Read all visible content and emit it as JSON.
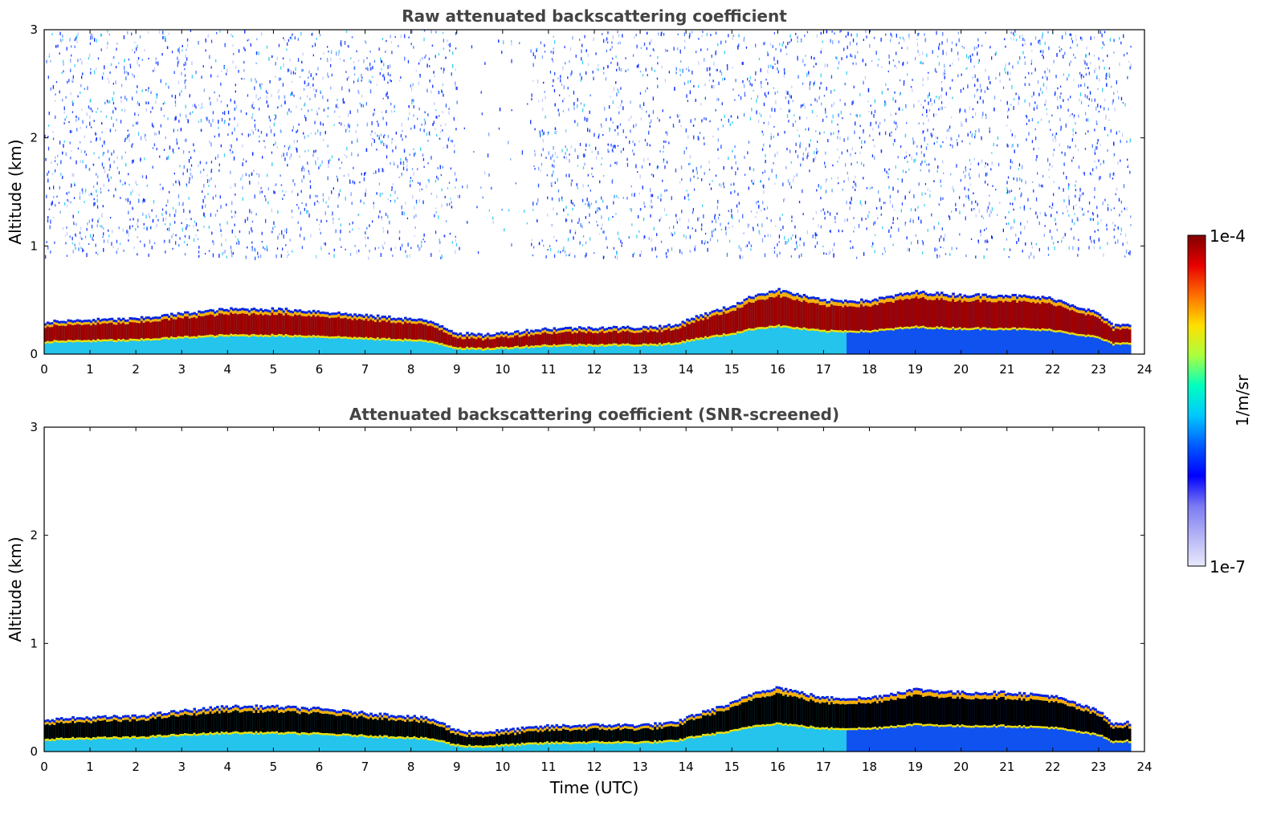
{
  "chart_data": [
    {
      "type": "heatmap",
      "title": "Raw attenuated backscattering coefficient",
      "xlabel": "",
      "ylabel": "Altitude (km)",
      "xlim": [
        0,
        24
      ],
      "ylim": [
        0,
        3
      ],
      "x_ticks": [
        "0",
        "1",
        "2",
        "3",
        "4",
        "5",
        "6",
        "7",
        "8",
        "9",
        "10",
        "11",
        "12",
        "13",
        "14",
        "15",
        "16",
        "17",
        "18",
        "19",
        "20",
        "21",
        "22",
        "23",
        "24"
      ],
      "y_ticks": [
        "0",
        "1",
        "2",
        "3"
      ],
      "data_end_hour": 23.7,
      "noise_above_km": 0.9,
      "layer_top_km": [
        [
          0,
          0.3
        ],
        [
          1,
          0.32
        ],
        [
          2,
          0.33
        ],
        [
          3,
          0.38
        ],
        [
          4,
          0.42
        ],
        [
          5,
          0.42
        ],
        [
          6,
          0.4
        ],
        [
          7,
          0.36
        ],
        [
          8,
          0.33
        ],
        [
          8.5,
          0.3
        ],
        [
          9,
          0.2
        ],
        [
          9.5,
          0.18
        ],
        [
          10,
          0.2
        ],
        [
          11,
          0.24
        ],
        [
          12,
          0.25
        ],
        [
          13,
          0.25
        ],
        [
          13.8,
          0.27
        ],
        [
          14,
          0.32
        ],
        [
          15,
          0.45
        ],
        [
          15.5,
          0.55
        ],
        [
          16,
          0.6
        ],
        [
          16.5,
          0.55
        ],
        [
          17,
          0.5
        ],
        [
          18,
          0.5
        ],
        [
          19,
          0.58
        ],
        [
          20,
          0.55
        ],
        [
          21,
          0.55
        ],
        [
          22,
          0.52
        ],
        [
          23,
          0.38
        ],
        [
          23.3,
          0.27
        ],
        [
          23.7,
          0.27
        ]
      ]
    },
    {
      "type": "heatmap",
      "title": "Attenuated backscattering coefficient (SNR-screened)",
      "xlabel": "Time (UTC)",
      "ylabel": "Altitude (km)",
      "xlim": [
        0,
        24
      ],
      "ylim": [
        0,
        3
      ],
      "x_ticks": [
        "0",
        "1",
        "2",
        "3",
        "4",
        "5",
        "6",
        "7",
        "8",
        "9",
        "10",
        "11",
        "12",
        "13",
        "14",
        "15",
        "16",
        "17",
        "18",
        "19",
        "20",
        "21",
        "22",
        "23",
        "24"
      ],
      "y_ticks": [
        "0",
        "1",
        "2",
        "3"
      ],
      "data_end_hour": 23.7,
      "layer_top_km": [
        [
          0,
          0.3
        ],
        [
          1,
          0.32
        ],
        [
          2,
          0.33
        ],
        [
          3,
          0.38
        ],
        [
          4,
          0.42
        ],
        [
          5,
          0.42
        ],
        [
          6,
          0.4
        ],
        [
          7,
          0.36
        ],
        [
          8,
          0.33
        ],
        [
          8.5,
          0.3
        ],
        [
          9,
          0.2
        ],
        [
          9.5,
          0.18
        ],
        [
          10,
          0.2
        ],
        [
          11,
          0.24
        ],
        [
          12,
          0.25
        ],
        [
          13,
          0.25
        ],
        [
          13.8,
          0.27
        ],
        [
          14,
          0.32
        ],
        [
          15,
          0.45
        ],
        [
          15.5,
          0.55
        ],
        [
          16,
          0.6
        ],
        [
          16.5,
          0.55
        ],
        [
          17,
          0.5
        ],
        [
          18,
          0.5
        ],
        [
          19,
          0.58
        ],
        [
          20,
          0.55
        ],
        [
          21,
          0.55
        ],
        [
          22,
          0.52
        ],
        [
          23,
          0.38
        ],
        [
          23.3,
          0.27
        ],
        [
          23.7,
          0.27
        ]
      ]
    }
  ],
  "colorbar": {
    "label": "1/m/sr",
    "max_label": "1e-4",
    "min_label": "1e-7",
    "colors": [
      "#e8e8fb",
      "#b4b4f6",
      "#7a7af2",
      "#0000ff",
      "#005aff",
      "#00c8ff",
      "#00ffc0",
      "#aaff40",
      "#ffe000",
      "#ff7000",
      "#e80000",
      "#800000"
    ]
  },
  "colors": {
    "strong": "#9e0000",
    "mid": "#2fd6ee",
    "low": "#0a3cff",
    "screened_core": "#000000"
  }
}
